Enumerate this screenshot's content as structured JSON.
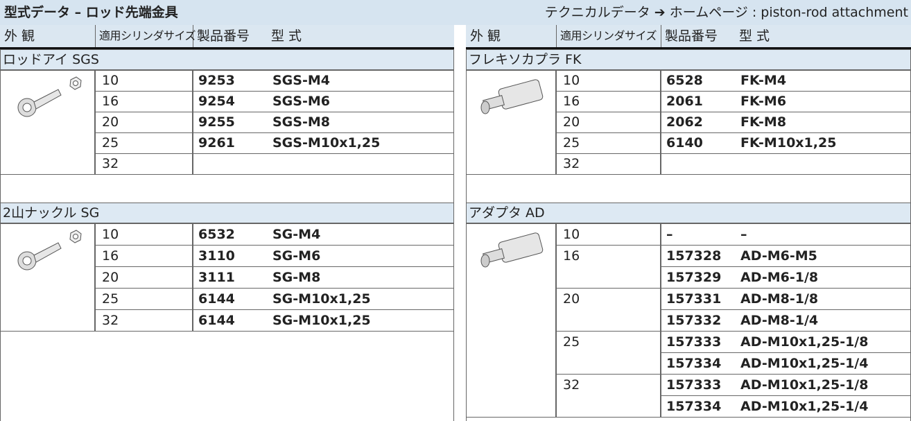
{
  "header": {
    "title": "型式データ – ロッド先端金具",
    "link": "テクニカルデータ ➔ ホームページ : piston-rod attachment"
  },
  "columns": [
    "外 観",
    "適用シリンダサイズ",
    "製品番号",
    "型 式"
  ],
  "left": {
    "sections": [
      {
        "name": "ロッドアイ SGS",
        "rows": [
          {
            "size": "10",
            "items": [
              {
                "part": "9253",
                "model": "SGS-M4"
              }
            ]
          },
          {
            "size": "16",
            "items": [
              {
                "part": "9254",
                "model": "SGS-M6"
              }
            ]
          },
          {
            "size": "20",
            "items": [
              {
                "part": "9255",
                "model": "SGS-M8"
              }
            ]
          },
          {
            "size": "25",
            "items": [
              {
                "part": "9261",
                "model": "SGS-M10x1,25"
              }
            ]
          },
          {
            "size": "32",
            "items": []
          }
        ]
      },
      {
        "name": "2山ナックル SG",
        "rows": [
          {
            "size": "10",
            "items": [
              {
                "part": "6532",
                "model": "SG-M4"
              }
            ]
          },
          {
            "size": "16",
            "items": [
              {
                "part": "3110",
                "model": "SG-M6"
              }
            ]
          },
          {
            "size": "20",
            "items": [
              {
                "part": "3111",
                "model": "SG-M8"
              }
            ]
          },
          {
            "size": "25",
            "items": [
              {
                "part": "6144",
                "model": "SG-M10x1,25"
              }
            ]
          },
          {
            "size": "32",
            "items": [
              {
                "part": "6144",
                "model": "SG-M10x1,25"
              }
            ]
          }
        ]
      }
    ]
  },
  "right": {
    "sections": [
      {
        "name": "フレキソカプラ FK",
        "rows": [
          {
            "size": "10",
            "items": [
              {
                "part": "6528",
                "model": "FK-M4"
              }
            ]
          },
          {
            "size": "16",
            "items": [
              {
                "part": "2061",
                "model": "FK-M6"
              }
            ]
          },
          {
            "size": "20",
            "items": [
              {
                "part": "2062",
                "model": "FK-M8"
              }
            ]
          },
          {
            "size": "25",
            "items": [
              {
                "part": "6140",
                "model": "FK-M10x1,25"
              }
            ]
          },
          {
            "size": "32",
            "items": []
          }
        ]
      },
      {
        "name": "アダプタ AD",
        "rows": [
          {
            "size": "10",
            "items": [
              {
                "part": "–",
                "model": "–"
              }
            ]
          },
          {
            "size": "16",
            "items": [
              {
                "part": "157328",
                "model": "AD-M6-M5"
              },
              {
                "part": "157329",
                "model": "AD-M6-1/8"
              }
            ]
          },
          {
            "size": "20",
            "items": [
              {
                "part": "157331",
                "model": "AD-M8-1/8"
              },
              {
                "part": "157332",
                "model": "AD-M8-1/4"
              }
            ]
          },
          {
            "size": "25",
            "items": [
              {
                "part": "157333",
                "model": "AD-M10x1,25-1/8"
              },
              {
                "part": "157334",
                "model": "AD-M10x1,25-1/4"
              }
            ]
          },
          {
            "size": "32",
            "items": [
              {
                "part": "157333",
                "model": "AD-M10x1,25-1/8"
              },
              {
                "part": "157334",
                "model": "AD-M10x1,25-1/4"
              }
            ]
          }
        ]
      }
    ]
  }
}
